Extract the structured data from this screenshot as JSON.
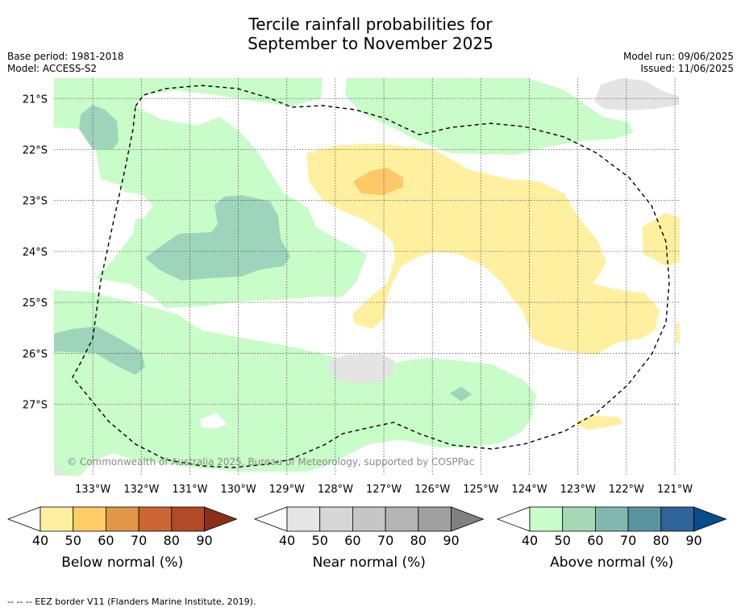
{
  "header": {
    "title_line1": "Tercile rainfall probabilities for",
    "title_line2": "September to November 2025",
    "base_period": "Base period: 1981-2018",
    "model": "Model: ACCESS-S2",
    "model_run": "Model run: 09/06/2025",
    "issued": "Issued: 11/06/2025"
  },
  "map": {
    "copyright": "© Commonwealth of Australia 2025, Bureau of Meteorology, supported by COSPPac",
    "footer_note": "--  --  -- EEZ border V11 (Flanders Marine Institute, 2019)."
  },
  "colors": {
    "below": [
      "#fff0a0",
      "#ffcc66",
      "#e09848",
      "#cc6633",
      "#b04a28",
      "#8b3018"
    ],
    "near": [
      "#e6e6e6",
      "#d6d6d6",
      "#c6c6c6",
      "#b4b4b4",
      "#a0a0a0",
      "#808080"
    ],
    "above": [
      "#c8fcc8",
      "#a6d8b8",
      "#80b8b0",
      "#5a94a0",
      "#2e6498",
      "#0a4c8c"
    ]
  },
  "chart_data": {
    "type": "heatmap",
    "title": "Tercile rainfall probabilities for September to November 2025",
    "x_ticks": [
      "133°W",
      "132°W",
      "131°W",
      "130°W",
      "129°W",
      "128°W",
      "127°W",
      "126°W",
      "125°W",
      "124°W",
      "123°W",
      "122°W",
      "121°W"
    ],
    "y_ticks": [
      "21°S",
      "22°S",
      "23°S",
      "24°S",
      "25°S",
      "26°S",
      "27°S"
    ],
    "xlim": [
      -133.8,
      -120.9
    ],
    "ylim": [
      -28.4,
      -20.6
    ],
    "grid": true,
    "colorbars": [
      {
        "name": "Below normal (%)",
        "levels": [
          40,
          50,
          60,
          70,
          80,
          90
        ]
      },
      {
        "name": "Near normal (%)",
        "levels": [
          40,
          50,
          60,
          70,
          80,
          90
        ]
      },
      {
        "name": "Above normal (%)",
        "levels": [
          40,
          50,
          60,
          70,
          80,
          90
        ]
      }
    ]
  }
}
